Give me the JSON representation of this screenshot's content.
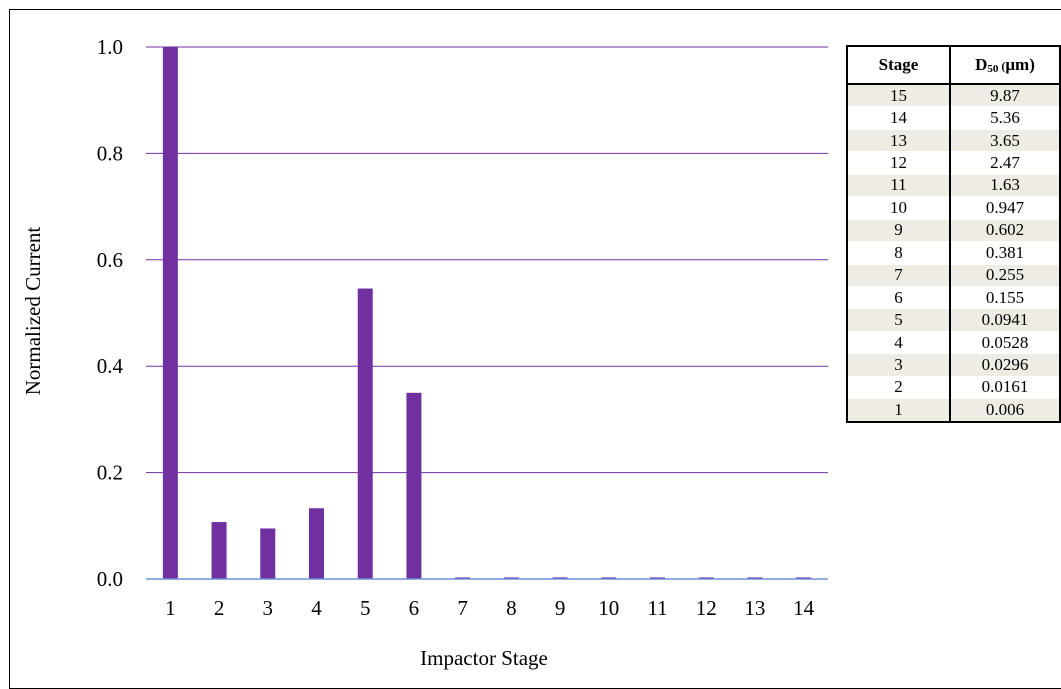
{
  "chart_data": {
    "type": "bar",
    "xlabel": "Impactor Stage",
    "ylabel": "Normalized  Current",
    "ylim": [
      0,
      1.0
    ],
    "yticks": [
      "0.0",
      "0.2",
      "0.4",
      "0.6",
      "0.8",
      "1.0"
    ],
    "categories": [
      "1",
      "2",
      "3",
      "4",
      "5",
      "6",
      "7",
      "8",
      "9",
      "10",
      "11",
      "12",
      "13",
      "14"
    ],
    "values": [
      1.0,
      0.107,
      0.095,
      0.133,
      0.546,
      0.35,
      0.003,
      0.003,
      0.003,
      0.003,
      0.003,
      0.003,
      0.003,
      0.003
    ],
    "grid": true,
    "bar_color": "#7030a0",
    "grid_color": "#7030a0",
    "axis_color": "#6e8fd6"
  },
  "table": {
    "header_stage": "Stage",
    "header_d": "D",
    "header_d_sub": "50",
    "header_unit": "(μm)",
    "rows": [
      {
        "stage": "15",
        "d50": "9.87"
      },
      {
        "stage": "14",
        "d50": "5.36"
      },
      {
        "stage": "13",
        "d50": "3.65"
      },
      {
        "stage": "12",
        "d50": "2.47"
      },
      {
        "stage": "11",
        "d50": "1.63"
      },
      {
        "stage": "10",
        "d50": "0.947"
      },
      {
        "stage": "9",
        "d50": "0.602"
      },
      {
        "stage": "8",
        "d50": "0.381"
      },
      {
        "stage": "7",
        "d50": "0.255"
      },
      {
        "stage": "6",
        "d50": "0.155"
      },
      {
        "stage": "5",
        "d50": "0.0941"
      },
      {
        "stage": "4",
        "d50": "0.0528"
      },
      {
        "stage": "3",
        "d50": "0.0296"
      },
      {
        "stage": "2",
        "d50": "0.0161"
      },
      {
        "stage": "1",
        "d50": "0.006"
      }
    ]
  }
}
